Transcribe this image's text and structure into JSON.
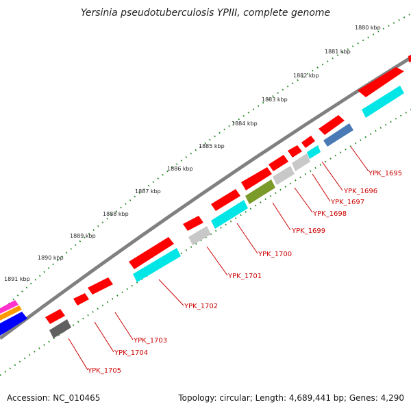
{
  "title": "Yersinia pseudotuberculosis YPIII, complete genome",
  "footer": {
    "accession": "Accession: NC_010465",
    "summary": "Topology: circular; Length: 4,689,441 bp; Genes: 4,290"
  },
  "kbp_ticks": [
    "1880 kbp",
    "1881 kbp",
    "1882 kbp",
    "1883 kbp",
    "1884 kbp",
    "1885 kbp",
    "1886 kbp",
    "1887 kbp",
    "1888 kbp",
    "1889 kbp",
    "1890 kbp",
    "1891 kbp"
  ],
  "gene_labels": [
    "YPK_1695",
    "YPK_1696",
    "YPK_1697",
    "YPK_1698",
    "YPK_1699",
    "YPK_1700",
    "YPK_1701",
    "YPK_1702",
    "YPK_1703",
    "YPK_1704",
    "YPK_1705"
  ],
  "colors": {
    "backbone": "#808080",
    "forward_gene": "#ff0000",
    "reverse_cds": "#00e5e5",
    "reverse_grey": "#c8c8c8",
    "olive": "#7a9a2a",
    "steelblue": "#4a7ab5",
    "darkgrey": "#606060",
    "tick_dots": "#228822",
    "label": "#cc0000",
    "edge_magenta": "#ff33cc",
    "edge_orange": "#ff9900",
    "edge_blue": "#0000ff"
  }
}
